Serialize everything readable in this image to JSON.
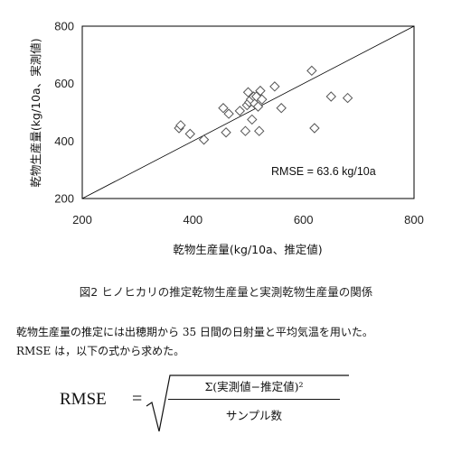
{
  "chart_data": {
    "type": "scatter",
    "xlabel": "乾物生産量(kg/10a、推定値)",
    "ylabel": "乾物生産量(kg/10a、実測値)",
    "xlim": [
      200,
      800
    ],
    "ylim": [
      200,
      800
    ],
    "xticks": [
      "200",
      "400",
      "600",
      "800"
    ],
    "yticks": [
      "200",
      "400",
      "600",
      "800"
    ],
    "reference_line": "1:1",
    "marker": "open-diamond",
    "annotation": "RMSE = 63.6 kg/10a",
    "points": [
      {
        "x": 375,
        "y": 445
      },
      {
        "x": 378,
        "y": 455
      },
      {
        "x": 395,
        "y": 425
      },
      {
        "x": 420,
        "y": 405
      },
      {
        "x": 455,
        "y": 515
      },
      {
        "x": 460,
        "y": 430
      },
      {
        "x": 465,
        "y": 495
      },
      {
        "x": 485,
        "y": 505
      },
      {
        "x": 495,
        "y": 435
      },
      {
        "x": 498,
        "y": 525
      },
      {
        "x": 500,
        "y": 570
      },
      {
        "x": 502,
        "y": 535
      },
      {
        "x": 505,
        "y": 545
      },
      {
        "x": 507,
        "y": 475
      },
      {
        "x": 510,
        "y": 555
      },
      {
        "x": 512,
        "y": 530
      },
      {
        "x": 515,
        "y": 555
      },
      {
        "x": 518,
        "y": 520
      },
      {
        "x": 520,
        "y": 435
      },
      {
        "x": 522,
        "y": 575
      },
      {
        "x": 525,
        "y": 545
      },
      {
        "x": 548,
        "y": 590
      },
      {
        "x": 560,
        "y": 515
      },
      {
        "x": 615,
        "y": 645
      },
      {
        "x": 620,
        "y": 445
      },
      {
        "x": 650,
        "y": 555
      },
      {
        "x": 680,
        "y": 550
      }
    ]
  },
  "caption": "図2 ヒノヒカリの推定乾物生産量と実測乾物生産量の関係",
  "paragraph1": "乾物生産量の推定には出穂期から 35 日間の日射量と平均気温を用いた。",
  "paragraph2": "RMSE は，以下の式から求めた。",
  "formula": {
    "lhs": "RMSE",
    "equals": "=",
    "numerator": "Σ(実測値−推定値)²",
    "denominator": "サンプル数"
  }
}
